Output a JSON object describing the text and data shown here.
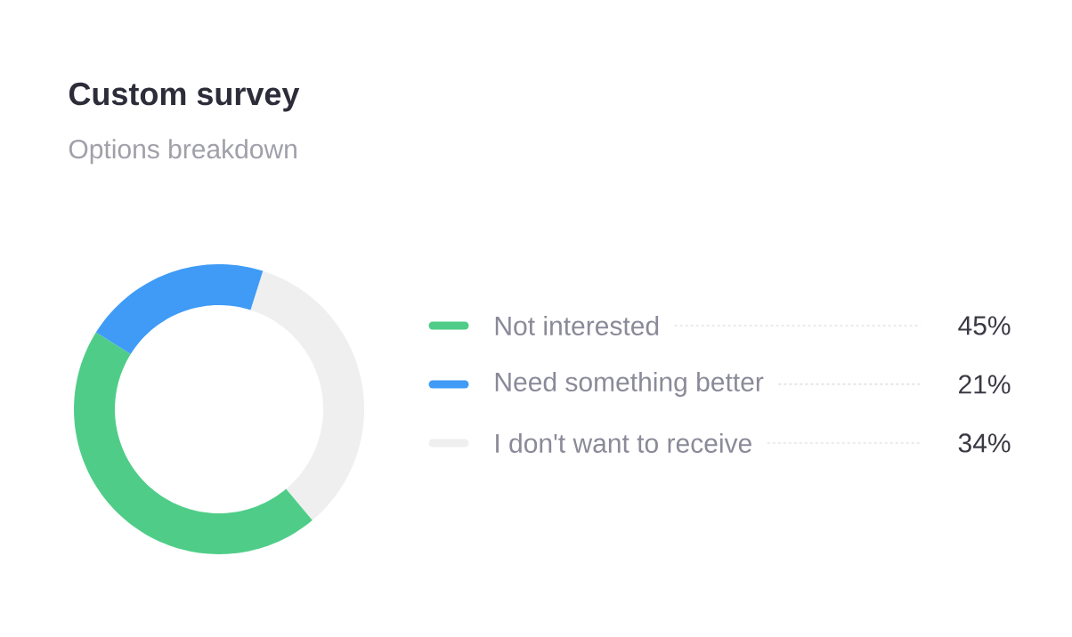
{
  "chart_data": {
    "type": "donut",
    "title": "Custom survey",
    "subtitle": "Options breakdown",
    "categories": [
      "Not interested",
      "Need something better",
      "I don't want to receive"
    ],
    "values": [
      45,
      21,
      34
    ],
    "value_labels": [
      "45%",
      "21%",
      "34%"
    ],
    "colors": [
      "#4fcd88",
      "#3f9bf6",
      "#efefef"
    ],
    "legend": "right"
  }
}
